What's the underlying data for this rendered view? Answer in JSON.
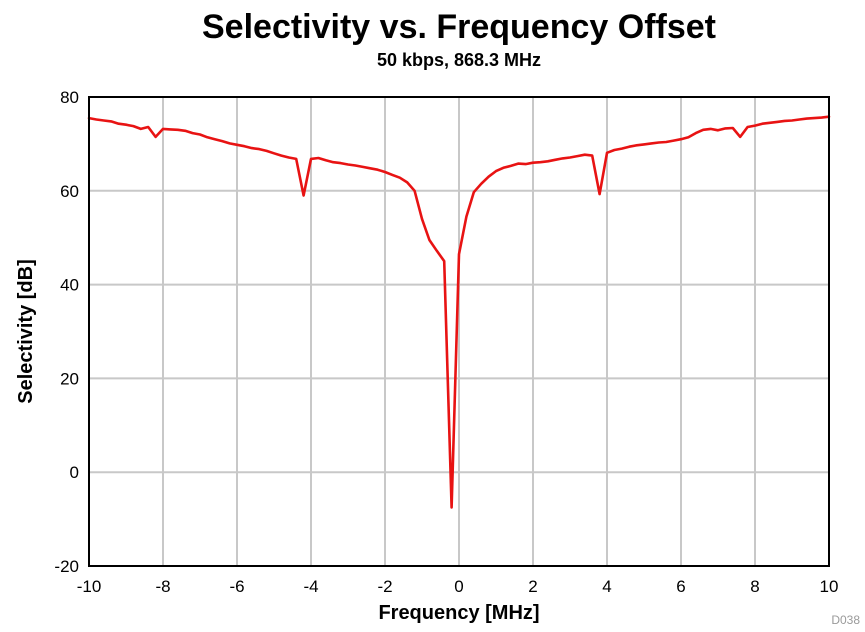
{
  "colors": {
    "series_line": "#e81313",
    "grid": "#c8c8c8",
    "frame": "#000000",
    "background": "#ffffff"
  },
  "chart_data": {
    "type": "line",
    "title": "Selectivity vs. Frequency Offset",
    "subtitle": "50 kbps, 868.3 MHz",
    "xlabel": "Frequency [MHz]",
    "ylabel": "Selectivity [dB]",
    "xlim": [
      -10,
      10
    ],
    "ylim": [
      -20,
      80
    ],
    "xticks": [
      -10,
      -8,
      -6,
      -4,
      -2,
      0,
      2,
      4,
      6,
      8,
      10
    ],
    "yticks": [
      -20,
      0,
      20,
      40,
      60,
      80
    ],
    "grid": true,
    "legend": "none",
    "watermark": "D038",
    "series": [
      {
        "color": "#e81313",
        "x": [
          -10,
          -9.8,
          -9.6,
          -9.4,
          -9.2,
          -9.0,
          -8.8,
          -8.6,
          -8.4,
          -8.2,
          -8.0,
          -7.8,
          -7.6,
          -7.4,
          -7.2,
          -7.0,
          -6.8,
          -6.6,
          -6.4,
          -6.2,
          -6.0,
          -5.8,
          -5.6,
          -5.4,
          -5.2,
          -5.0,
          -4.8,
          -4.6,
          -4.4,
          -4.2,
          -4.0,
          -3.8,
          -3.6,
          -3.4,
          -3.2,
          -3.0,
          -2.8,
          -2.6,
          -2.4,
          -2.2,
          -2.0,
          -1.8,
          -1.6,
          -1.4,
          -1.2,
          -1.0,
          -0.8,
          -0.6,
          -0.4,
          -0.2,
          0.0,
          0.2,
          0.4,
          0.6,
          0.8,
          1.0,
          1.2,
          1.4,
          1.6,
          1.8,
          2.0,
          2.2,
          2.4,
          2.6,
          2.8,
          3.0,
          3.2,
          3.4,
          3.6,
          3.8,
          4.0,
          4.2,
          4.4,
          4.6,
          4.8,
          5.0,
          5.2,
          5.4,
          5.6,
          5.8,
          6.0,
          6.2,
          6.4,
          6.6,
          6.8,
          7.0,
          7.2,
          7.4,
          7.6,
          7.8,
          8.0,
          8.2,
          8.4,
          8.6,
          8.8,
          9.0,
          9.2,
          9.4,
          9.6,
          9.8,
          10.0
        ],
        "y": [
          75.5,
          75.2,
          75.0,
          74.8,
          74.3,
          74.1,
          73.8,
          73.2,
          73.6,
          71.5,
          73.2,
          73.1,
          73.0,
          72.8,
          72.3,
          72.0,
          71.4,
          71.0,
          70.6,
          70.1,
          69.8,
          69.5,
          69.1,
          68.9,
          68.5,
          68.0,
          67.5,
          67.1,
          66.8,
          59.0,
          66.8,
          67.0,
          66.5,
          66.1,
          65.9,
          65.6,
          65.4,
          65.1,
          64.8,
          64.5,
          64.0,
          63.4,
          62.8,
          61.8,
          60.0,
          54.0,
          49.5,
          47.2,
          45.0,
          -7.5,
          46.5,
          54.5,
          59.7,
          61.5,
          63.0,
          64.2,
          64.9,
          65.3,
          65.8,
          65.7,
          66.0,
          66.1,
          66.3,
          66.6,
          66.9,
          67.1,
          67.4,
          67.7,
          67.5,
          59.3,
          68.1,
          68.7,
          69.0,
          69.4,
          69.7,
          69.9,
          70.1,
          70.3,
          70.4,
          70.7,
          71.0,
          71.4,
          72.3,
          73.0,
          73.2,
          72.9,
          73.3,
          73.4,
          71.5,
          73.6,
          73.9,
          74.3,
          74.5,
          74.7,
          74.9,
          75.0,
          75.2,
          75.4,
          75.5,
          75.6,
          75.8
        ]
      }
    ]
  }
}
